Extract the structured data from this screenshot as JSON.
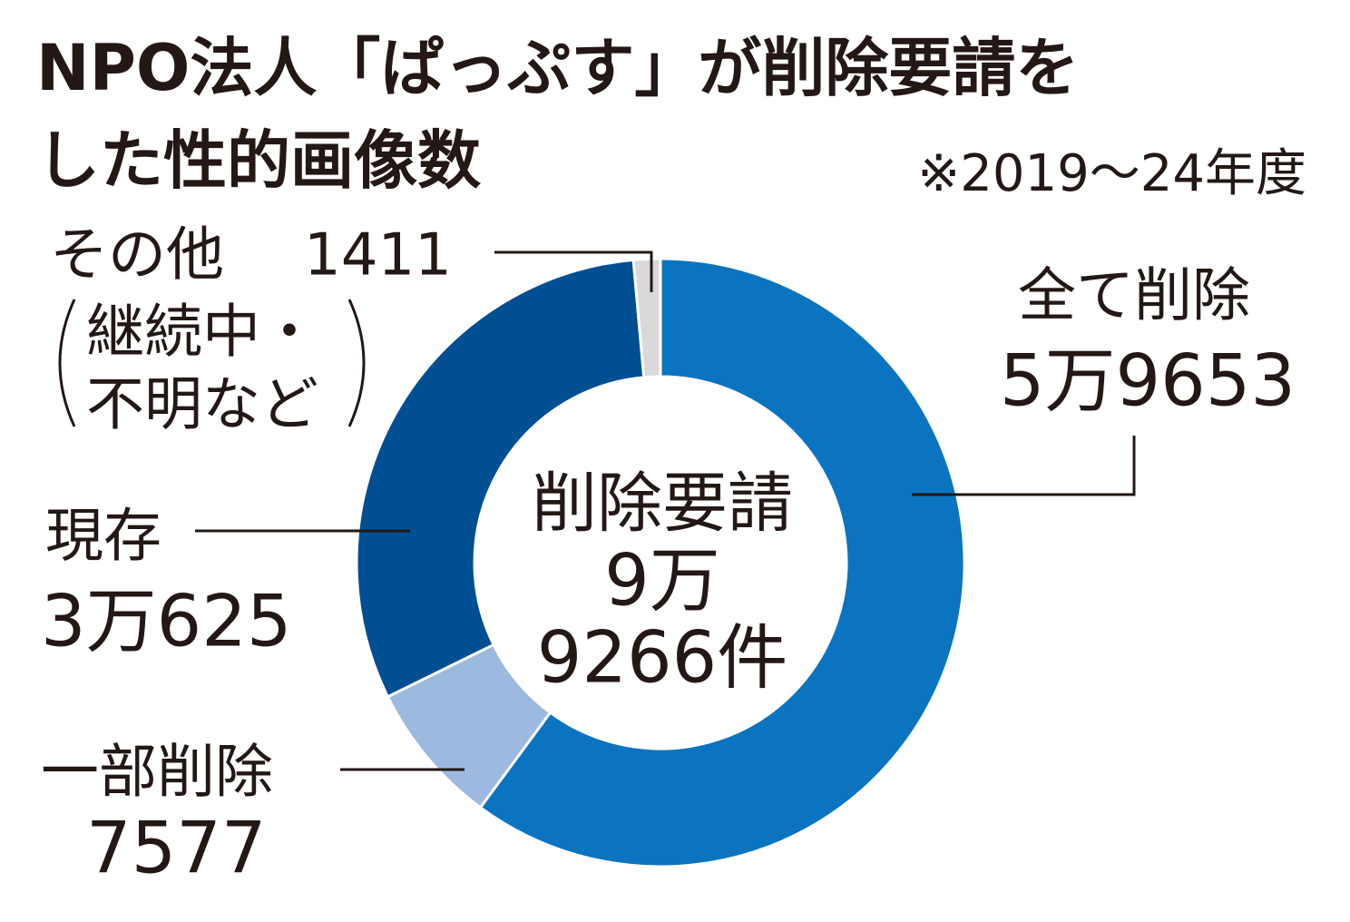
{
  "chart_data": {
    "type": "pie",
    "title": [
      "NPO法人「ぱっぷす」が削除要請を",
      "した性的画像数"
    ],
    "note": "※2019～24年度",
    "categories": [
      "全て削除",
      "一部削除",
      "現存",
      "その他"
    ],
    "values": [
      59653,
      7577,
      30625,
      1411
    ],
    "value_labels": [
      "5万9653",
      "7577",
      "3万625",
      "1411"
    ],
    "other_note": [
      "継続中・",
      "不明など"
    ],
    "colors": [
      "#0a74c0",
      "#9db9e0",
      "#004f93",
      "#d9d9dc"
    ],
    "center_label": [
      "削除要請",
      "9万",
      "9266件"
    ]
  }
}
